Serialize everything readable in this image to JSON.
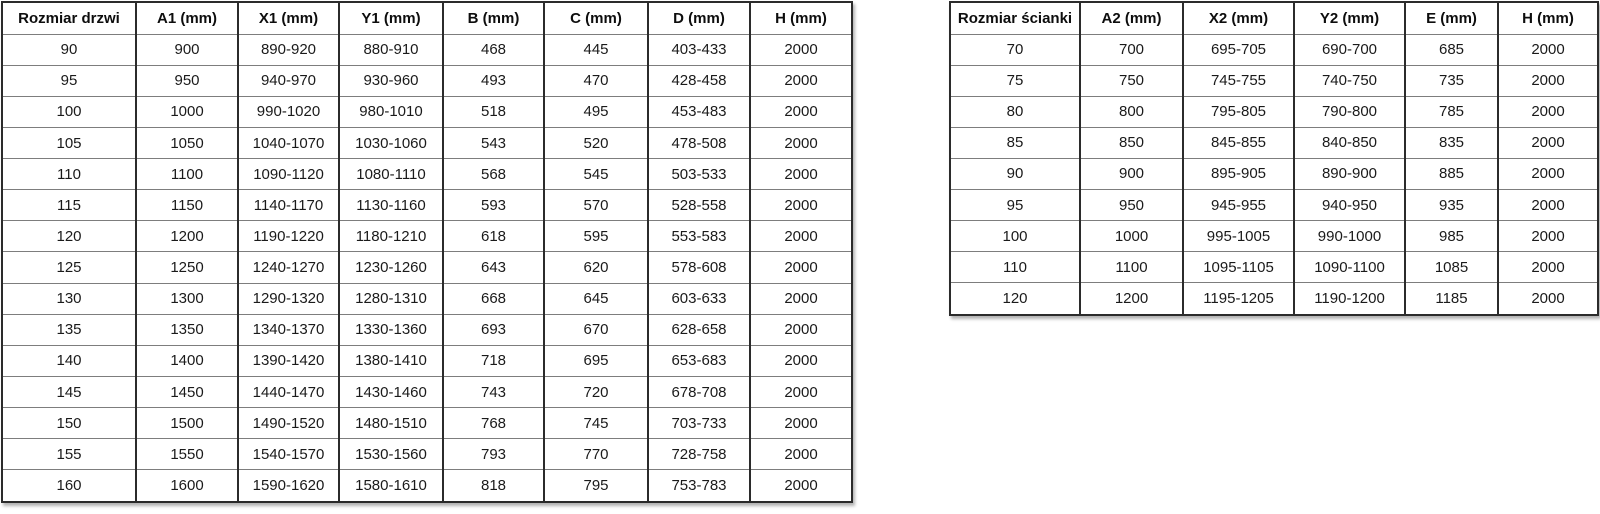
{
  "page": {
    "background": "#ffffff"
  },
  "colors": {
    "outer_border": "#2b2b2b",
    "inner_row_border": "#7d7d7d",
    "text": "#1a1a1a",
    "header_text": "#0d0d0d"
  },
  "tables": [
    {
      "id": "door-sizes",
      "headers": [
        "Rozmiar drzwi",
        "A1 (mm)",
        "X1 (mm)",
        "Y1 (mm)",
        "B (mm)",
        "C (mm)",
        "D (mm)",
        "H (mm)"
      ],
      "rows": [
        [
          "90",
          "900",
          "890-920",
          "880-910",
          "468",
          "445",
          "403-433",
          "2000"
        ],
        [
          "95",
          "950",
          "940-970",
          "930-960",
          "493",
          "470",
          "428-458",
          "2000"
        ],
        [
          "100",
          "1000",
          "990-1020",
          "980-1010",
          "518",
          "495",
          "453-483",
          "2000"
        ],
        [
          "105",
          "1050",
          "1040-1070",
          "1030-1060",
          "543",
          "520",
          "478-508",
          "2000"
        ],
        [
          "110",
          "1100",
          "1090-1120",
          "1080-1110",
          "568",
          "545",
          "503-533",
          "2000"
        ],
        [
          "115",
          "1150",
          "1140-1170",
          "1130-1160",
          "593",
          "570",
          "528-558",
          "2000"
        ],
        [
          "120",
          "1200",
          "1190-1220",
          "1180-1210",
          "618",
          "595",
          "553-583",
          "2000"
        ],
        [
          "125",
          "1250",
          "1240-1270",
          "1230-1260",
          "643",
          "620",
          "578-608",
          "2000"
        ],
        [
          "130",
          "1300",
          "1290-1320",
          "1280-1310",
          "668",
          "645",
          "603-633",
          "2000"
        ],
        [
          "135",
          "1350",
          "1340-1370",
          "1330-1360",
          "693",
          "670",
          "628-658",
          "2000"
        ],
        [
          "140",
          "1400",
          "1390-1420",
          "1380-1410",
          "718",
          "695",
          "653-683",
          "2000"
        ],
        [
          "145",
          "1450",
          "1440-1470",
          "1430-1460",
          "743",
          "720",
          "678-708",
          "2000"
        ],
        [
          "150",
          "1500",
          "1490-1520",
          "1480-1510",
          "768",
          "745",
          "703-733",
          "2000"
        ],
        [
          "155",
          "1550",
          "1540-1570",
          "1530-1560",
          "793",
          "770",
          "728-758",
          "2000"
        ],
        [
          "160",
          "1600",
          "1590-1620",
          "1580-1610",
          "818",
          "795",
          "753-783",
          "2000"
        ]
      ]
    },
    {
      "id": "wall-sizes",
      "headers": [
        "Rozmiar ścianki",
        "A2 (mm)",
        "X2 (mm)",
        "Y2 (mm)",
        "E (mm)",
        "H (mm)"
      ],
      "rows": [
        [
          "70",
          "700",
          "695-705",
          "690-700",
          "685",
          "2000"
        ],
        [
          "75",
          "750",
          "745-755",
          "740-750",
          "735",
          "2000"
        ],
        [
          "80",
          "800",
          "795-805",
          "790-800",
          "785",
          "2000"
        ],
        [
          "85",
          "850",
          "845-855",
          "840-850",
          "835",
          "2000"
        ],
        [
          "90",
          "900",
          "895-905",
          "890-900",
          "885",
          "2000"
        ],
        [
          "95",
          "950",
          "945-955",
          "940-950",
          "935",
          "2000"
        ],
        [
          "100",
          "1000",
          "995-1005",
          "990-1000",
          "985",
          "2000"
        ],
        [
          "110",
          "1100",
          "1095-1105",
          "1090-1100",
          "1085",
          "2000"
        ],
        [
          "120",
          "1200",
          "1195-1205",
          "1190-1200",
          "1185",
          "2000"
        ]
      ]
    }
  ]
}
